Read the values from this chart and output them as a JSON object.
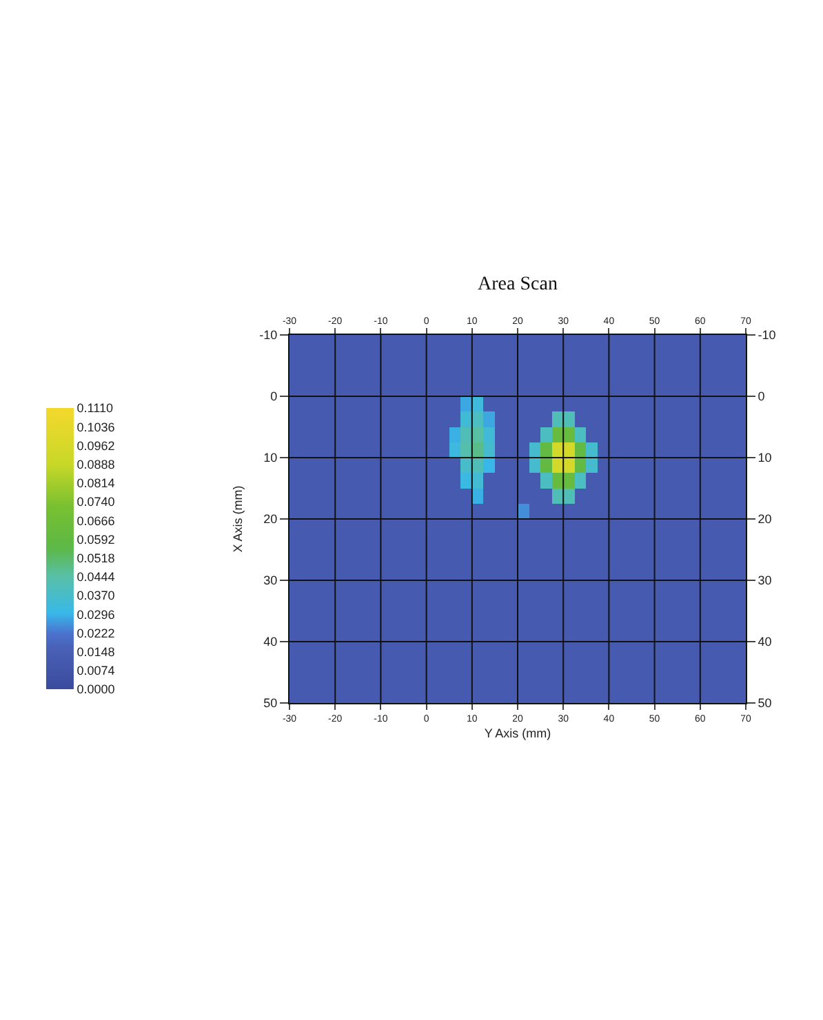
{
  "chart_data": {
    "type": "heatmap",
    "title": "Area Scan",
    "xlabel": "Y Axis (mm)",
    "ylabel": "X Axis (mm)",
    "x": [
      -28.75,
      -26.25,
      -23.75,
      -21.25,
      -18.75,
      -16.25,
      -13.75,
      -11.25,
      -8.75,
      -6.25,
      -3.75,
      -1.25,
      1.25,
      3.75,
      6.25,
      8.75,
      11.25,
      13.75,
      16.25,
      18.75,
      21.25,
      23.75,
      26.25,
      28.75,
      31.25,
      33.75,
      36.25,
      38.75,
      41.25,
      43.75,
      46.25,
      48.75,
      51.25,
      53.75,
      56.25,
      58.75,
      61.25,
      63.75,
      66.25,
      68.75
    ],
    "y": [
      -8.75,
      -6.25,
      -3.75,
      -1.25,
      1.25,
      3.75,
      6.25,
      8.75,
      11.25,
      13.75,
      16.25,
      18.75,
      21.25,
      23.75,
      26.25,
      28.75,
      31.25,
      33.75,
      36.25,
      38.75,
      41.25,
      43.75,
      46.25,
      48.75
    ],
    "cells": [
      [
        0.012,
        0.012,
        0.012,
        0.012,
        0.012,
        0.012,
        0.012,
        0.012,
        0.012,
        0.012,
        0.012,
        0.012,
        0.012,
        0.012,
        0.012,
        0.012,
        0.012,
        0.012,
        0.012,
        0.012,
        0.012,
        0.012,
        0.012,
        0.012,
        0.012,
        0.012,
        0.012,
        0.012,
        0.012,
        0.012,
        0.012,
        0.012,
        0.012,
        0.012,
        0.012,
        0.012,
        0.012,
        0.012,
        0.012,
        0.012
      ],
      [
        0.012,
        0.012,
        0.012,
        0.012,
        0.012,
        0.012,
        0.012,
        0.012,
        0.012,
        0.012,
        0.012,
        0.012,
        0.012,
        0.012,
        0.012,
        0.012,
        0.012,
        0.012,
        0.012,
        0.012,
        0.012,
        0.012,
        0.012,
        0.012,
        0.012,
        0.012,
        0.012,
        0.012,
        0.012,
        0.012,
        0.012,
        0.012,
        0.012,
        0.012,
        0.012,
        0.012,
        0.012,
        0.012,
        0.012,
        0.012
      ],
      [
        0.012,
        0.012,
        0.012,
        0.012,
        0.012,
        0.012,
        0.012,
        0.012,
        0.012,
        0.012,
        0.012,
        0.012,
        0.012,
        0.012,
        0.012,
        0.012,
        0.012,
        0.012,
        0.012,
        0.012,
        0.012,
        0.012,
        0.012,
        0.012,
        0.012,
        0.012,
        0.012,
        0.012,
        0.012,
        0.012,
        0.012,
        0.012,
        0.012,
        0.012,
        0.012,
        0.012,
        0.012,
        0.012,
        0.012,
        0.012
      ],
      [
        0.012,
        0.012,
        0.012,
        0.012,
        0.012,
        0.012,
        0.012,
        0.012,
        0.012,
        0.012,
        0.012,
        0.012,
        0.012,
        0.012,
        0.012,
        0.012,
        0.012,
        0.012,
        0.012,
        0.012,
        0.012,
        0.012,
        0.012,
        0.012,
        0.012,
        0.012,
        0.012,
        0.012,
        0.012,
        0.012,
        0.012,
        0.012,
        0.012,
        0.012,
        0.012,
        0.012,
        0.012,
        0.012,
        0.012,
        0.012
      ],
      [
        0.012,
        0.012,
        0.012,
        0.012,
        0.012,
        0.012,
        0.012,
        0.012,
        0.012,
        0.012,
        0.012,
        0.012,
        0.012,
        0.012,
        0.012,
        0.028,
        0.033,
        0.012,
        0.012,
        0.012,
        0.012,
        0.012,
        0.012,
        0.012,
        0.012,
        0.012,
        0.012,
        0.012,
        0.012,
        0.012,
        0.012,
        0.012,
        0.012,
        0.012,
        0.012,
        0.012,
        0.012,
        0.012,
        0.012,
        0.012
      ],
      [
        0.012,
        0.012,
        0.012,
        0.012,
        0.012,
        0.012,
        0.012,
        0.012,
        0.012,
        0.012,
        0.012,
        0.012,
        0.012,
        0.012,
        0.012,
        0.034,
        0.039,
        0.028,
        0.012,
        0.012,
        0.012,
        0.012,
        0.012,
        0.041,
        0.041,
        0.012,
        0.012,
        0.012,
        0.012,
        0.012,
        0.012,
        0.012,
        0.012,
        0.012,
        0.012,
        0.012,
        0.012,
        0.012,
        0.012,
        0.012
      ],
      [
        0.012,
        0.012,
        0.012,
        0.012,
        0.012,
        0.012,
        0.012,
        0.012,
        0.012,
        0.012,
        0.012,
        0.012,
        0.012,
        0.012,
        0.029,
        0.041,
        0.045,
        0.034,
        0.012,
        0.012,
        0.012,
        0.012,
        0.039,
        0.062,
        0.062,
        0.039,
        0.012,
        0.012,
        0.012,
        0.012,
        0.012,
        0.012,
        0.012,
        0.012,
        0.012,
        0.012,
        0.012,
        0.012,
        0.012,
        0.012
      ],
      [
        0.012,
        0.012,
        0.012,
        0.012,
        0.012,
        0.012,
        0.012,
        0.012,
        0.012,
        0.012,
        0.012,
        0.012,
        0.012,
        0.012,
        0.032,
        0.043,
        0.048,
        0.036,
        0.012,
        0.012,
        0.012,
        0.036,
        0.059,
        0.095,
        0.095,
        0.059,
        0.036,
        0.012,
        0.012,
        0.012,
        0.012,
        0.012,
        0.012,
        0.012,
        0.012,
        0.012,
        0.012,
        0.012,
        0.012,
        0.012
      ],
      [
        0.012,
        0.012,
        0.012,
        0.012,
        0.012,
        0.012,
        0.012,
        0.012,
        0.012,
        0.012,
        0.012,
        0.012,
        0.012,
        0.012,
        0.012,
        0.037,
        0.041,
        0.03,
        0.012,
        0.012,
        0.012,
        0.036,
        0.059,
        0.095,
        0.095,
        0.059,
        0.036,
        0.012,
        0.012,
        0.012,
        0.012,
        0.012,
        0.012,
        0.012,
        0.012,
        0.012,
        0.012,
        0.012,
        0.012,
        0.012
      ],
      [
        0.012,
        0.012,
        0.012,
        0.012,
        0.012,
        0.012,
        0.012,
        0.012,
        0.012,
        0.012,
        0.012,
        0.012,
        0.012,
        0.012,
        0.012,
        0.031,
        0.035,
        0.012,
        0.012,
        0.012,
        0.012,
        0.012,
        0.039,
        0.062,
        0.062,
        0.039,
        0.012,
        0.012,
        0.012,
        0.012,
        0.012,
        0.012,
        0.012,
        0.012,
        0.012,
        0.012,
        0.012,
        0.012,
        0.012,
        0.012
      ],
      [
        0.012,
        0.012,
        0.012,
        0.012,
        0.012,
        0.012,
        0.012,
        0.012,
        0.012,
        0.012,
        0.012,
        0.012,
        0.012,
        0.012,
        0.012,
        0.012,
        0.029,
        0.012,
        0.012,
        0.012,
        0.012,
        0.012,
        0.012,
        0.041,
        0.041,
        0.012,
        0.012,
        0.012,
        0.012,
        0.012,
        0.012,
        0.012,
        0.012,
        0.012,
        0.012,
        0.012,
        0.012,
        0.012,
        0.012,
        0.012
      ],
      [
        0.012,
        0.012,
        0.012,
        0.012,
        0.012,
        0.012,
        0.012,
        0.012,
        0.012,
        0.012,
        0.012,
        0.012,
        0.012,
        0.012,
        0.012,
        0.012,
        0.012,
        0.012,
        0.012,
        0.012,
        0.025,
        0.012,
        0.012,
        0.012,
        0.012,
        0.012,
        0.012,
        0.012,
        0.012,
        0.012,
        0.012,
        0.012,
        0.012,
        0.012,
        0.012,
        0.012,
        0.012,
        0.012,
        0.012,
        0.012
      ],
      [
        0.012,
        0.012,
        0.012,
        0.012,
        0.012,
        0.012,
        0.012,
        0.012,
        0.012,
        0.012,
        0.012,
        0.012,
        0.012,
        0.012,
        0.012,
        0.012,
        0.012,
        0.012,
        0.012,
        0.012,
        0.012,
        0.012,
        0.012,
        0.012,
        0.012,
        0.012,
        0.012,
        0.012,
        0.012,
        0.012,
        0.012,
        0.012,
        0.012,
        0.012,
        0.012,
        0.012,
        0.012,
        0.012,
        0.012,
        0.012
      ],
      [
        0.012,
        0.012,
        0.012,
        0.012,
        0.012,
        0.012,
        0.012,
        0.012,
        0.012,
        0.012,
        0.012,
        0.012,
        0.012,
        0.012,
        0.012,
        0.012,
        0.012,
        0.012,
        0.012,
        0.012,
        0.012,
        0.012,
        0.012,
        0.012,
        0.012,
        0.012,
        0.012,
        0.012,
        0.012,
        0.012,
        0.012,
        0.012,
        0.012,
        0.012,
        0.012,
        0.012,
        0.012,
        0.012,
        0.012,
        0.012
      ],
      [
        0.012,
        0.012,
        0.012,
        0.012,
        0.012,
        0.012,
        0.012,
        0.012,
        0.012,
        0.012,
        0.012,
        0.012,
        0.012,
        0.012,
        0.012,
        0.012,
        0.012,
        0.012,
        0.012,
        0.012,
        0.012,
        0.012,
        0.012,
        0.012,
        0.012,
        0.012,
        0.012,
        0.012,
        0.012,
        0.012,
        0.012,
        0.012,
        0.012,
        0.012,
        0.012,
        0.012,
        0.012,
        0.012,
        0.012,
        0.012
      ],
      [
        0.012,
        0.012,
        0.012,
        0.012,
        0.012,
        0.012,
        0.012,
        0.012,
        0.012,
        0.012,
        0.012,
        0.012,
        0.012,
        0.012,
        0.012,
        0.012,
        0.012,
        0.012,
        0.012,
        0.012,
        0.012,
        0.012,
        0.012,
        0.012,
        0.012,
        0.012,
        0.012,
        0.012,
        0.012,
        0.012,
        0.012,
        0.012,
        0.012,
        0.012,
        0.012,
        0.012,
        0.012,
        0.012,
        0.012,
        0.012
      ],
      [
        0.012,
        0.012,
        0.012,
        0.012,
        0.012,
        0.012,
        0.012,
        0.012,
        0.012,
        0.012,
        0.012,
        0.012,
        0.012,
        0.012,
        0.012,
        0.012,
        0.012,
        0.012,
        0.012,
        0.012,
        0.012,
        0.012,
        0.012,
        0.012,
        0.012,
        0.012,
        0.012,
        0.012,
        0.012,
        0.012,
        0.012,
        0.012,
        0.012,
        0.012,
        0.012,
        0.012,
        0.012,
        0.012,
        0.012,
        0.012
      ],
      [
        0.012,
        0.012,
        0.012,
        0.012,
        0.012,
        0.012,
        0.012,
        0.012,
        0.012,
        0.012,
        0.012,
        0.012,
        0.012,
        0.012,
        0.012,
        0.012,
        0.012,
        0.012,
        0.012,
        0.012,
        0.012,
        0.012,
        0.012,
        0.012,
        0.012,
        0.012,
        0.012,
        0.012,
        0.012,
        0.012,
        0.012,
        0.012,
        0.012,
        0.012,
        0.012,
        0.012,
        0.012,
        0.012,
        0.012,
        0.012
      ],
      [
        0.012,
        0.012,
        0.012,
        0.012,
        0.012,
        0.012,
        0.012,
        0.012,
        0.012,
        0.012,
        0.012,
        0.012,
        0.012,
        0.012,
        0.012,
        0.012,
        0.012,
        0.012,
        0.012,
        0.012,
        0.012,
        0.012,
        0.012,
        0.012,
        0.012,
        0.012,
        0.012,
        0.012,
        0.012,
        0.012,
        0.012,
        0.012,
        0.012,
        0.012,
        0.012,
        0.012,
        0.012,
        0.012,
        0.012,
        0.012
      ],
      [
        0.012,
        0.012,
        0.012,
        0.012,
        0.012,
        0.012,
        0.012,
        0.012,
        0.012,
        0.012,
        0.012,
        0.012,
        0.012,
        0.012,
        0.012,
        0.012,
        0.012,
        0.012,
        0.012,
        0.012,
        0.012,
        0.012,
        0.012,
        0.012,
        0.012,
        0.012,
        0.012,
        0.012,
        0.012,
        0.012,
        0.012,
        0.012,
        0.012,
        0.012,
        0.012,
        0.012,
        0.012,
        0.012,
        0.012,
        0.012
      ],
      [
        0.012,
        0.012,
        0.012,
        0.012,
        0.012,
        0.012,
        0.012,
        0.012,
        0.012,
        0.012,
        0.012,
        0.012,
        0.012,
        0.012,
        0.012,
        0.012,
        0.012,
        0.012,
        0.012,
        0.012,
        0.012,
        0.012,
        0.012,
        0.012,
        0.012,
        0.012,
        0.012,
        0.012,
        0.012,
        0.012,
        0.012,
        0.012,
        0.012,
        0.012,
        0.012,
        0.012,
        0.012,
        0.012,
        0.012,
        0.012
      ],
      [
        0.012,
        0.012,
        0.012,
        0.012,
        0.012,
        0.012,
        0.012,
        0.012,
        0.012,
        0.012,
        0.012,
        0.012,
        0.012,
        0.012,
        0.012,
        0.012,
        0.012,
        0.012,
        0.012,
        0.012,
        0.012,
        0.012,
        0.012,
        0.012,
        0.012,
        0.012,
        0.012,
        0.012,
        0.012,
        0.012,
        0.012,
        0.012,
        0.012,
        0.012,
        0.012,
        0.012,
        0.012,
        0.012,
        0.012,
        0.012
      ],
      [
        0.012,
        0.012,
        0.012,
        0.012,
        0.012,
        0.012,
        0.012,
        0.012,
        0.012,
        0.012,
        0.012,
        0.012,
        0.012,
        0.012,
        0.012,
        0.012,
        0.012,
        0.012,
        0.012,
        0.012,
        0.012,
        0.012,
        0.012,
        0.012,
        0.012,
        0.012,
        0.012,
        0.012,
        0.012,
        0.012,
        0.012,
        0.012,
        0.012,
        0.012,
        0.012,
        0.012,
        0.012,
        0.012,
        0.012,
        0.012
      ],
      [
        0.012,
        0.012,
        0.012,
        0.012,
        0.012,
        0.012,
        0.012,
        0.012,
        0.012,
        0.012,
        0.012,
        0.012,
        0.012,
        0.012,
        0.012,
        0.012,
        0.012,
        0.012,
        0.012,
        0.012,
        0.012,
        0.012,
        0.012,
        0.012,
        0.012,
        0.012,
        0.012,
        0.012,
        0.012,
        0.012,
        0.012,
        0.012,
        0.012,
        0.012,
        0.012,
        0.012,
        0.012,
        0.012,
        0.012,
        0.012
      ]
    ],
    "clim": [
      0,
      0.111
    ],
    "cticks": [
      {
        "value": 0,
        "label": "0.0000"
      },
      {
        "value": 0.0074,
        "label": "0.0074"
      },
      {
        "value": 0.0148,
        "label": "0.0148"
      },
      {
        "value": 0.0222,
        "label": "0.0222"
      },
      {
        "value": 0.0296,
        "label": "0.0296"
      },
      {
        "value": 0.037,
        "label": "0.0370"
      },
      {
        "value": 0.0444,
        "label": "0.0444"
      },
      {
        "value": 0.0518,
        "label": "0.0518"
      },
      {
        "value": 0.0592,
        "label": "0.0592"
      },
      {
        "value": 0.0666,
        "label": "0.0666"
      },
      {
        "value": 0.074,
        "label": "0.0740"
      },
      {
        "value": 0.0814,
        "label": "0.0814"
      },
      {
        "value": 0.0888,
        "label": "0.0888"
      },
      {
        "value": 0.0962,
        "label": "0.0962"
      },
      {
        "value": 0.1036,
        "label": "0.1036"
      },
      {
        "value": 0.111,
        "label": "0.1110"
      }
    ],
    "xlim": [
      -30,
      70
    ],
    "xticks": [
      -30,
      -20,
      -10,
      0,
      10,
      20,
      30,
      40,
      50,
      60,
      70
    ],
    "x2lim": [
      -30,
      70
    ],
    "x2ticks": [
      -30,
      -20,
      -10,
      0,
      10,
      20,
      30,
      40,
      50,
      60,
      70
    ],
    "ylim": [
      50,
      -10
    ],
    "yticks": [
      -10,
      0,
      10,
      20,
      30,
      40,
      50
    ],
    "y2lim": [
      50,
      -10
    ],
    "y2ticks": [
      -10,
      0,
      10,
      20,
      30,
      40,
      50
    ],
    "grid": true
  }
}
